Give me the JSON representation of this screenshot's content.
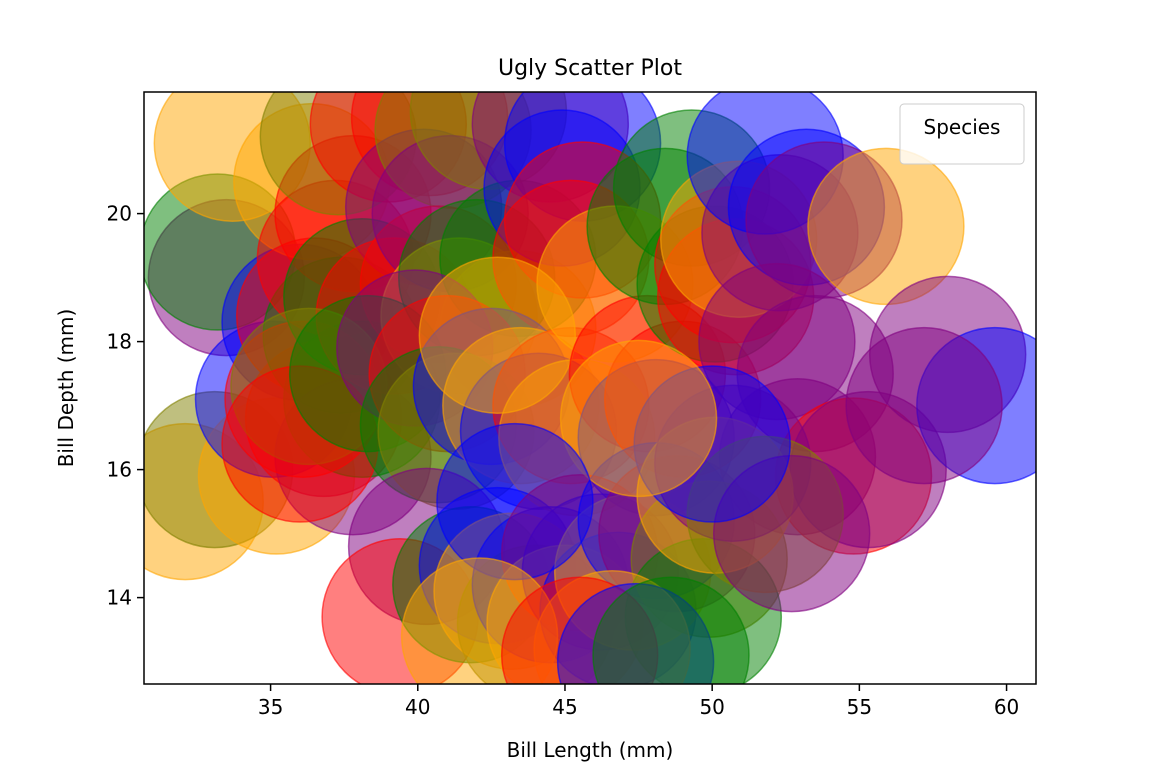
{
  "chart_data": {
    "type": "scatter",
    "title": "Ugly Scatter Plot",
    "xlabel": "Bill Length (mm)",
    "ylabel": "Bill Depth (mm)",
    "xlim": [
      30.7,
      61.0
    ],
    "ylim": [
      12.65,
      21.9
    ],
    "xticks": [
      35,
      40,
      45,
      50,
      55,
      60
    ],
    "yticks": [
      14,
      16,
      18,
      20
    ],
    "grid": false,
    "legend": {
      "title": "Species",
      "position": "upper right"
    },
    "point_alpha": 0.5,
    "palette": [
      "#ffa500",
      "#808000",
      "#800080",
      "#008000",
      "#ff0000",
      "#0000ff"
    ],
    "points": [
      {
        "x": 32.1,
        "y": 15.5,
        "c": "#ffa500"
      },
      {
        "x": 33.1,
        "y": 16.0,
        "c": "#808000"
      },
      {
        "x": 35.2,
        "y": 15.9,
        "c": "#ffa500"
      },
      {
        "x": 33.5,
        "y": 19.0,
        "c": "#800080"
      },
      {
        "x": 33.2,
        "y": 19.4,
        "c": "#008000"
      },
      {
        "x": 33.7,
        "y": 21.1,
        "c": "#ffa500"
      },
      {
        "x": 36.0,
        "y": 18.3,
        "c": "#0000ff"
      },
      {
        "x": 35.1,
        "y": 17.1,
        "c": "#0000ff"
      },
      {
        "x": 36.4,
        "y": 20.5,
        "c": "#ffa500"
      },
      {
        "x": 36.5,
        "y": 18.4,
        "c": "#ff0000"
      },
      {
        "x": 36.8,
        "y": 16.8,
        "c": "#ff0000"
      },
      {
        "x": 37.4,
        "y": 18.1,
        "c": "#008000"
      },
      {
        "x": 37.2,
        "y": 19.3,
        "c": "#ff0000"
      },
      {
        "x": 37.8,
        "y": 20.0,
        "c": "#ff0000"
      },
      {
        "x": 37.8,
        "y": 16.2,
        "c": "#800080"
      },
      {
        "x": 38.1,
        "y": 17.1,
        "c": "#008000"
      },
      {
        "x": 36.1,
        "y": 17.1,
        "c": "#ff0000"
      },
      {
        "x": 38.1,
        "y": 18.7,
        "c": "#008000"
      },
      {
        "x": 37.3,
        "y": 21.2,
        "c": "#808000"
      },
      {
        "x": 39.0,
        "y": 21.4,
        "c": "#ff0000"
      },
      {
        "x": 40.4,
        "y": 21.5,
        "c": "#ff0000"
      },
      {
        "x": 40.2,
        "y": 20.1,
        "c": "#800080"
      },
      {
        "x": 41.2,
        "y": 21.3,
        "c": "#808000"
      },
      {
        "x": 39.2,
        "y": 18.4,
        "c": "#ff0000"
      },
      {
        "x": 40.7,
        "y": 18.9,
        "c": "#ff0000"
      },
      {
        "x": 41.1,
        "y": 20.0,
        "c": "#800080"
      },
      {
        "x": 42.4,
        "y": 21.6,
        "c": "#808000"
      },
      {
        "x": 41.4,
        "y": 18.4,
        "c": "#ffa500"
      },
      {
        "x": 43.4,
        "y": 18.2,
        "c": "#ffa500"
      },
      {
        "x": 42.0,
        "y": 19.0,
        "c": "#008000"
      },
      {
        "x": 43.4,
        "y": 19.3,
        "c": "#008000"
      },
      {
        "x": 44.5,
        "y": 21.4,
        "c": "#800080"
      },
      {
        "x": 45.6,
        "y": 21.1,
        "c": "#0000ff"
      },
      {
        "x": 44.9,
        "y": 20.4,
        "c": "#0000ff"
      },
      {
        "x": 45.6,
        "y": 19.9,
        "c": "#ff0000"
      },
      {
        "x": 45.2,
        "y": 19.3,
        "c": "#ff0000"
      },
      {
        "x": 36.3,
        "y": 17.3,
        "c": "#808000"
      },
      {
        "x": 36.0,
        "y": 16.4,
        "c": "#ff0000"
      },
      {
        "x": 38.3,
        "y": 17.5,
        "c": "#008000"
      },
      {
        "x": 39.9,
        "y": 17.9,
        "c": "#800080"
      },
      {
        "x": 41.0,
        "y": 17.5,
        "c": "#ff0000"
      },
      {
        "x": 40.7,
        "y": 16.7,
        "c": "#008000"
      },
      {
        "x": 41.3,
        "y": 16.6,
        "c": "#808000"
      },
      {
        "x": 42.5,
        "y": 17.3,
        "c": "#0000ff"
      },
      {
        "x": 43.5,
        "y": 17.0,
        "c": "#ffa500"
      },
      {
        "x": 44.1,
        "y": 16.6,
        "c": "#0000ff"
      },
      {
        "x": 45.2,
        "y": 17.0,
        "c": "#ff0000"
      },
      {
        "x": 45.4,
        "y": 16.5,
        "c": "#ffa500"
      },
      {
        "x": 42.7,
        "y": 18.1,
        "c": "#ffa500"
      },
      {
        "x": 46.7,
        "y": 18.9,
        "c": "#ffa500"
      },
      {
        "x": 47.8,
        "y": 17.5,
        "c": "#ff0000"
      },
      {
        "x": 48.1,
        "y": 16.5,
        "c": "#0000ff"
      },
      {
        "x": 49.0,
        "y": 17.1,
        "c": "#ff0000"
      },
      {
        "x": 48.4,
        "y": 19.8,
        "c": "#008000"
      },
      {
        "x": 49.3,
        "y": 20.4,
        "c": "#008000"
      },
      {
        "x": 50.1,
        "y": 18.9,
        "c": "#008000"
      },
      {
        "x": 50.7,
        "y": 19.2,
        "c": "#ff0000"
      },
      {
        "x": 50.8,
        "y": 18.7,
        "c": "#ff0000"
      },
      {
        "x": 50.9,
        "y": 19.6,
        "c": "#ffa500"
      },
      {
        "x": 52.3,
        "y": 19.7,
        "c": "#800080"
      },
      {
        "x": 51.8,
        "y": 20.9,
        "c": "#0000ff"
      },
      {
        "x": 53.2,
        "y": 20.1,
        "c": "#0000ff"
      },
      {
        "x": 53.8,
        "y": 19.9,
        "c": "#800080"
      },
      {
        "x": 55.9,
        "y": 19.8,
        "c": "#ffa500"
      },
      {
        "x": 52.2,
        "y": 18.0,
        "c": "#800080"
      },
      {
        "x": 53.5,
        "y": 17.5,
        "c": "#800080"
      },
      {
        "x": 52.9,
        "y": 16.2,
        "c": "#800080"
      },
      {
        "x": 54.8,
        "y": 15.9,
        "c": "#ff0000"
      },
      {
        "x": 55.3,
        "y": 16.0,
        "c": "#800080"
      },
      {
        "x": 58.0,
        "y": 17.8,
        "c": "#800080"
      },
      {
        "x": 59.6,
        "y": 17.0,
        "c": "#0000ff"
      },
      {
        "x": 57.2,
        "y": 17.0,
        "c": "#800080"
      },
      {
        "x": 40.3,
        "y": 14.8,
        "c": "#800080"
      },
      {
        "x": 39.4,
        "y": 13.7,
        "c": "#ff0000"
      },
      {
        "x": 41.8,
        "y": 14.2,
        "c": "#008000"
      },
      {
        "x": 42.7,
        "y": 14.5,
        "c": "#0000ff"
      },
      {
        "x": 43.2,
        "y": 14.1,
        "c": "#ffa500"
      },
      {
        "x": 44.0,
        "y": 13.6,
        "c": "#808000"
      },
      {
        "x": 44.5,
        "y": 14.2,
        "c": "#0000ff"
      },
      {
        "x": 45.5,
        "y": 14.7,
        "c": "#ff0000"
      },
      {
        "x": 45.0,
        "y": 13.6,
        "c": "#ffa500"
      },
      {
        "x": 46.2,
        "y": 14.4,
        "c": "#800080"
      },
      {
        "x": 46.8,
        "y": 13.8,
        "c": "#0000ff"
      },
      {
        "x": 47.3,
        "y": 14.4,
        "c": "#ffa500"
      },
      {
        "x": 48.1,
        "y": 15.2,
        "c": "#0000ff"
      },
      {
        "x": 48.8,
        "y": 15.0,
        "c": "#800080"
      },
      {
        "x": 49.9,
        "y": 14.6,
        "c": "#808000"
      },
      {
        "x": 49.7,
        "y": 13.7,
        "c": "#008000"
      },
      {
        "x": 50.1,
        "y": 15.6,
        "c": "#ffa500"
      },
      {
        "x": 50.7,
        "y": 16.1,
        "c": "#800080"
      },
      {
        "x": 51.8,
        "y": 15.3,
        "c": "#808000"
      },
      {
        "x": 52.7,
        "y": 15.0,
        "c": "#800080"
      },
      {
        "x": 50.0,
        "y": 16.4,
        "c": "#0000ff"
      },
      {
        "x": 47.5,
        "y": 16.8,
        "c": "#ffa500"
      },
      {
        "x": 43.3,
        "y": 15.5,
        "c": "#0000ff"
      },
      {
        "x": 42.1,
        "y": 13.4,
        "c": "#ffa500"
      },
      {
        "x": 46.6,
        "y": 13.2,
        "c": "#ffa500"
      },
      {
        "x": 45.5,
        "y": 13.1,
        "c": "#ff0000"
      },
      {
        "x": 47.4,
        "y": 13.0,
        "c": "#0000ff"
      },
      {
        "x": 48.6,
        "y": 13.1,
        "c": "#008000"
      }
    ]
  }
}
